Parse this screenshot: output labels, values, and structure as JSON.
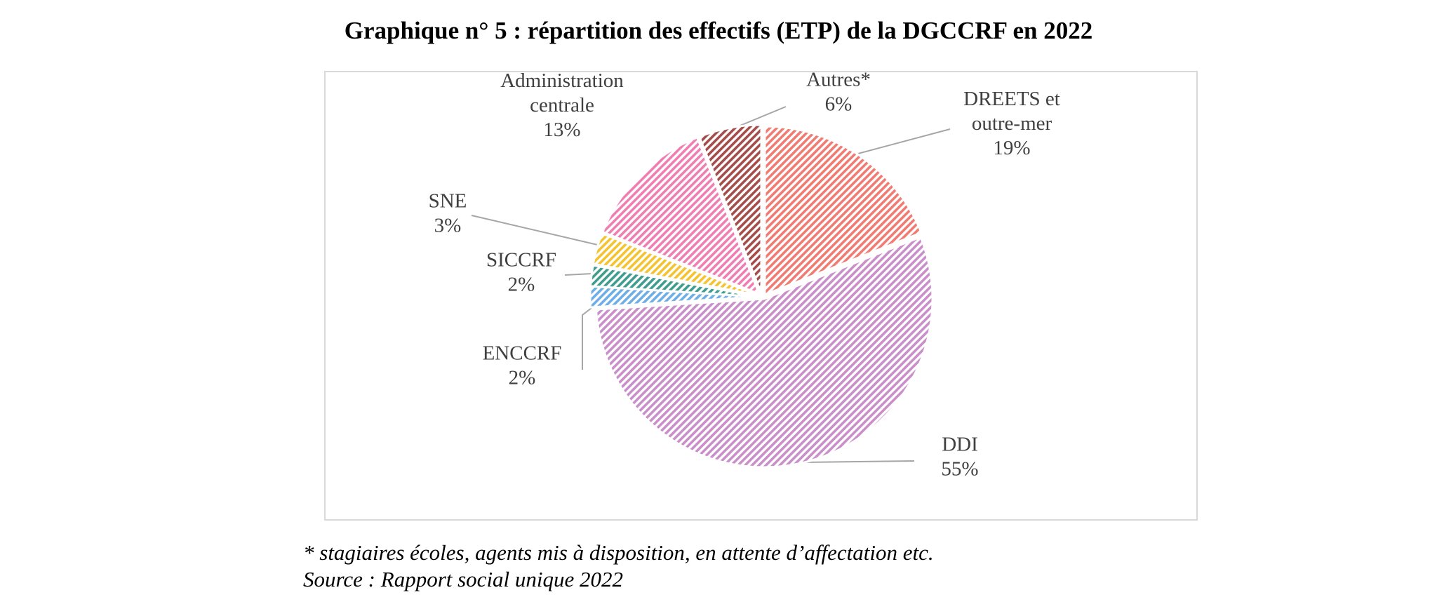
{
  "title": "Graphique n° 5 :  répartition des effectifs (ETP) de la DGCCRF en 2022",
  "footnote": "* stagiaires écoles, agents mis à disposition, en attente d’affectation etc.",
  "source": "Source : Rapport social unique 2022",
  "chart_data": {
    "type": "pie",
    "start_angle_deg": 0,
    "direction": "clockwise",
    "slices": [
      {
        "key": "dreets",
        "label_lines": [
          "DREETS et",
          "outre-mer"
        ],
        "pct_label": "19%",
        "value": 19,
        "color": "#f07b72"
      },
      {
        "key": "ddi",
        "label_lines": [
          "DDI"
        ],
        "pct_label": "55%",
        "value": 55,
        "color": "#c98fc9"
      },
      {
        "key": "enccrf",
        "label_lines": [
          "ENCCRF"
        ],
        "pct_label": "2%",
        "value": 2,
        "color": "#6eaee6"
      },
      {
        "key": "siccrf",
        "label_lines": [
          "SICCRF"
        ],
        "pct_label": "2%",
        "value": 2,
        "color": "#3f9d8f"
      },
      {
        "key": "sne",
        "label_lines": [
          "SNE"
        ],
        "pct_label": "3%",
        "value": 3,
        "color": "#f4c430"
      },
      {
        "key": "admin",
        "label_lines": [
          "Administration",
          "centrale"
        ],
        "pct_label": "13%",
        "value": 13,
        "color": "#ef7fb3"
      },
      {
        "key": "autres",
        "label_lines": [
          "Autres*"
        ],
        "pct_label": "6%",
        "value": 6,
        "color": "#a44d4a"
      }
    ]
  }
}
